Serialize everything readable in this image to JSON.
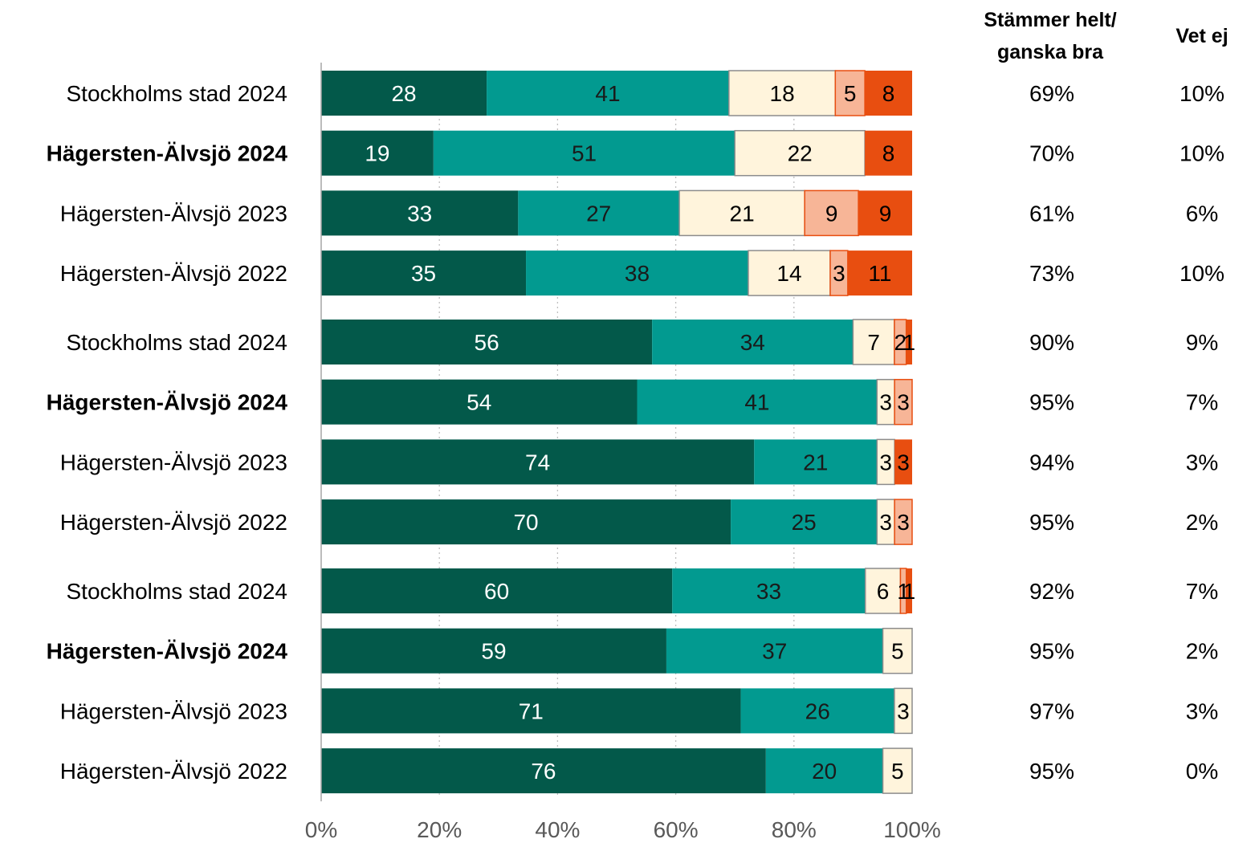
{
  "chart_data": {
    "type": "bar",
    "orientation": "horizontal",
    "stacked": true,
    "xlim": [
      0,
      100
    ],
    "x_ticks": [
      "0%",
      "20%",
      "40%",
      "60%",
      "80%",
      "100%"
    ],
    "grid": "vertical dotted",
    "segment_colors": [
      "#03594a",
      "#029a90",
      "#fff4dc",
      "#f7b597",
      "#e84e10"
    ],
    "segment_text_colors": [
      "#ffffff",
      "#1a1a1a",
      "#000000",
      "#000000",
      "#000000"
    ],
    "column_headers": {
      "agree": [
        "Stämmer helt/",
        "ganska bra"
      ],
      "dont_know": "Vet ej"
    },
    "groups": [
      {
        "rows": [
          {
            "label": "Stockholms stad 2024",
            "bold": false,
            "values": [
              28,
              41,
              18,
              5,
              8
            ],
            "agree": "69%",
            "dont_know": "10%"
          },
          {
            "label": "Hägersten-Älvsjö 2024",
            "bold": true,
            "values": [
              19,
              51,
              22,
              0,
              8
            ],
            "agree": "70%",
            "dont_know": "10%"
          },
          {
            "label": "Hägersten-Älvsjö 2023",
            "bold": false,
            "values": [
              33,
              27,
              21,
              9,
              9
            ],
            "agree": "61%",
            "dont_know": "6%"
          },
          {
            "label": "Hägersten-Älvsjö 2022",
            "bold": false,
            "values": [
              35,
              38,
              14,
              3,
              11
            ],
            "agree": "73%",
            "dont_know": "10%"
          }
        ]
      },
      {
        "rows": [
          {
            "label": "Stockholms stad 2024",
            "bold": false,
            "values": [
              56,
              34,
              7,
              2,
              1
            ],
            "agree": "90%",
            "dont_know": "9%"
          },
          {
            "label": "Hägersten-Älvsjö 2024",
            "bold": true,
            "values": [
              54,
              41,
              3,
              3,
              0
            ],
            "agree": "95%",
            "dont_know": "7%"
          },
          {
            "label": "Hägersten-Älvsjö 2023",
            "bold": false,
            "values": [
              74,
              21,
              3,
              0,
              3
            ],
            "agree": "94%",
            "dont_know": "3%"
          },
          {
            "label": "Hägersten-Älvsjö 2022",
            "bold": false,
            "values": [
              70,
              25,
              3,
              3,
              0
            ],
            "agree": "95%",
            "dont_know": "2%"
          }
        ]
      },
      {
        "rows": [
          {
            "label": "Stockholms stad 2024",
            "bold": false,
            "values": [
              60,
              33,
              6,
              1,
              1
            ],
            "agree": "92%",
            "dont_know": "7%"
          },
          {
            "label": "Hägersten-Älvsjö 2024",
            "bold": true,
            "values": [
              59,
              37,
              5,
              0,
              0
            ],
            "agree": "95%",
            "dont_know": "2%"
          },
          {
            "label": "Hägersten-Älvsjö 2023",
            "bold": false,
            "values": [
              71,
              26,
              3,
              0,
              0
            ],
            "agree": "97%",
            "dont_know": "3%"
          },
          {
            "label": "Hägersten-Älvsjö 2022",
            "bold": false,
            "values": [
              76,
              20,
              5,
              0,
              0
            ],
            "agree": "95%",
            "dont_know": "0%"
          }
        ]
      }
    ]
  }
}
